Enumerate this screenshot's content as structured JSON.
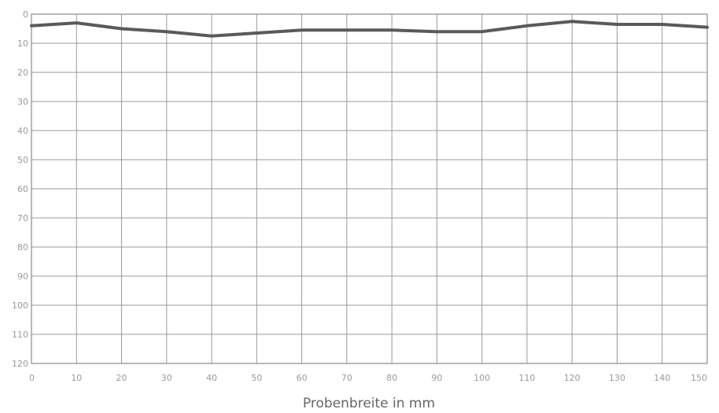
{
  "chart_data": {
    "type": "line",
    "title": "",
    "xlabel": "Probenbreite in mm",
    "ylabel": "",
    "xlim": [
      0,
      150
    ],
    "ylim": [
      0,
      120
    ],
    "y_inverted": true,
    "grid": true,
    "x_ticks": [
      0,
      10,
      20,
      30,
      40,
      50,
      60,
      70,
      80,
      90,
      100,
      110,
      120,
      130,
      140,
      150
    ],
    "x_tick_labels": [
      "0",
      "10",
      "20",
      "30",
      "40",
      "50",
      "60",
      "70",
      "80",
      "90",
      "100",
      "110",
      "120",
      "130",
      "140",
      "150"
    ],
    "y_ticks": [
      0,
      10,
      20,
      30,
      40,
      50,
      60,
      70,
      80,
      90,
      100,
      110,
      120
    ],
    "y_tick_labels": [
      "0",
      "10",
      "20",
      "30",
      "40",
      "50",
      "60",
      "70",
      "80",
      "90",
      "100",
      "110",
      "120"
    ],
    "series": [
      {
        "color": "#5a5a5a",
        "x": [
          0,
          10,
          20,
          30,
          40,
          50,
          60,
          70,
          80,
          90,
          100,
          110,
          120,
          130,
          140,
          150
        ],
        "y": [
          4,
          3,
          5,
          6,
          7.5,
          6.5,
          5.5,
          5.5,
          5.5,
          6,
          6,
          4,
          2.5,
          3.5,
          3.5,
          4.5
        ]
      }
    ]
  }
}
